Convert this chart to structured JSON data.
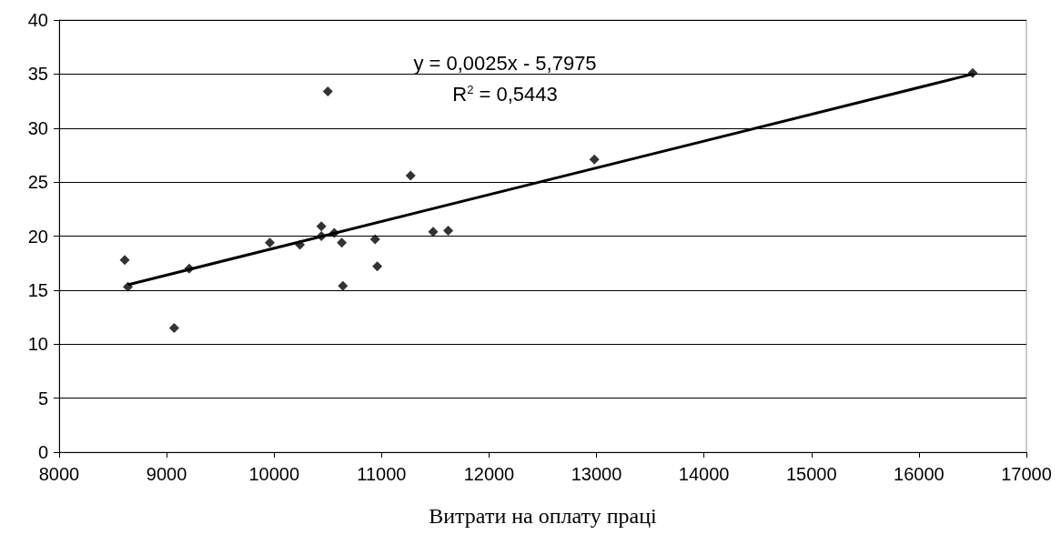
{
  "chart_data": {
    "type": "scatter",
    "xlabel": "Витрати на оплату праці",
    "annotations": [
      "y = 0,0025x - 5,7975",
      "R$^{2}$ = 0,5443"
    ],
    "series": [
      {
        "color": "#000000",
        "x": [
          8610,
          8640,
          9210,
          9070,
          9960,
          10240,
          10440,
          10440,
          10560,
          10630,
          10640,
          10940,
          10960,
          11270,
          11480,
          11620,
          12980,
          16500,
          10500
        ],
        "values": [
          17.8,
          15.3,
          17.0,
          11.5,
          19.4,
          19.2,
          20.9,
          20.0,
          20.3,
          19.4,
          15.4,
          19.7,
          17.2,
          25.6,
          20.4,
          20.5,
          27.1,
          35.1,
          33.4
        ]
      },
      {
        "type": "line",
        "color": "#000000",
        "marker": "none",
        "x": [
          8640,
          16500
        ],
        "values": [
          15.5,
          35.0
        ]
      }
    ],
    "xlim": [
      8000,
      17000
    ],
    "xticks": [
      8000,
      9000,
      10000,
      11000,
      12000,
      13000,
      14000,
      15000,
      16000,
      17000
    ],
    "ylim": [
      0,
      40
    ],
    "yticks": [
      0,
      5,
      10,
      15,
      20,
      25,
      30,
      35,
      40
    ],
    "grid": "y",
    "marker": "diamond",
    "line_style": "solid"
  }
}
